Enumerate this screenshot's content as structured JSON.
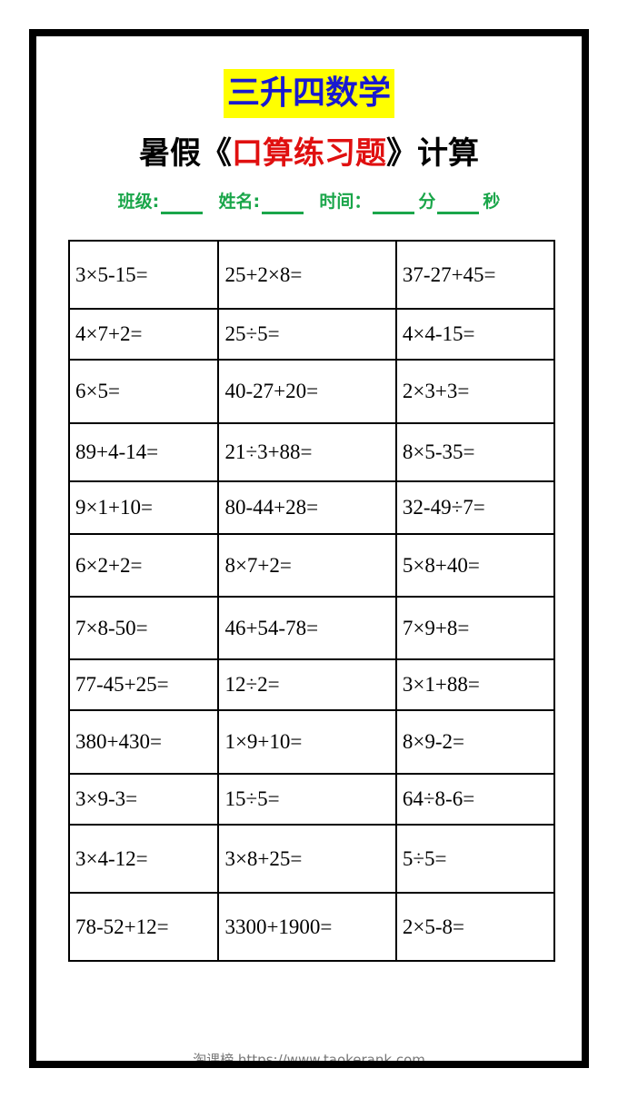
{
  "header": {
    "title": "三升四数学",
    "subtitle_prefix": "暑假《",
    "subtitle_red": "口算练习题",
    "subtitle_suffix": "》计算",
    "class_label": "班级:",
    "name_label": "姓名:",
    "time_label": "时间：",
    "minute_label": "分",
    "second_label": "秒",
    "colors": {
      "title_bg": "#ffff00",
      "title_text": "#1a1ad0",
      "red": "#e01010",
      "green": "#1aa64a"
    }
  },
  "rows": [
    [
      "3×5-15=",
      "25+2×8=",
      "37-27+45="
    ],
    [
      "4×7+2=",
      "25÷5=",
      "4×4-15="
    ],
    [
      "6×5=",
      "40-27+20=",
      "2×3+3="
    ],
    [
      "89+4-14=",
      "21÷3+88=",
      "8×5-35="
    ],
    [
      "9×1+10=",
      "80-44+28=",
      "32-49÷7="
    ],
    [
      "6×2+2=",
      "8×7+2=",
      "5×8+40="
    ],
    [
      "7×8-50=",
      "46+54-78=",
      "7×9+8="
    ],
    [
      "77-45+25=",
      "12÷2=",
      "3×1+88="
    ],
    [
      "380+430=",
      "1×9+10=",
      "8×9-2="
    ],
    [
      "3×9-3=",
      "15÷5=",
      "64÷8-6="
    ],
    [
      "3×4-12=",
      "3×8+25=",
      "5÷5="
    ],
    [
      "78-52+12=",
      "3300+1900=",
      "2×5-8="
    ]
  ],
  "watermark": "淘课榜 https://www.taokerank.com"
}
